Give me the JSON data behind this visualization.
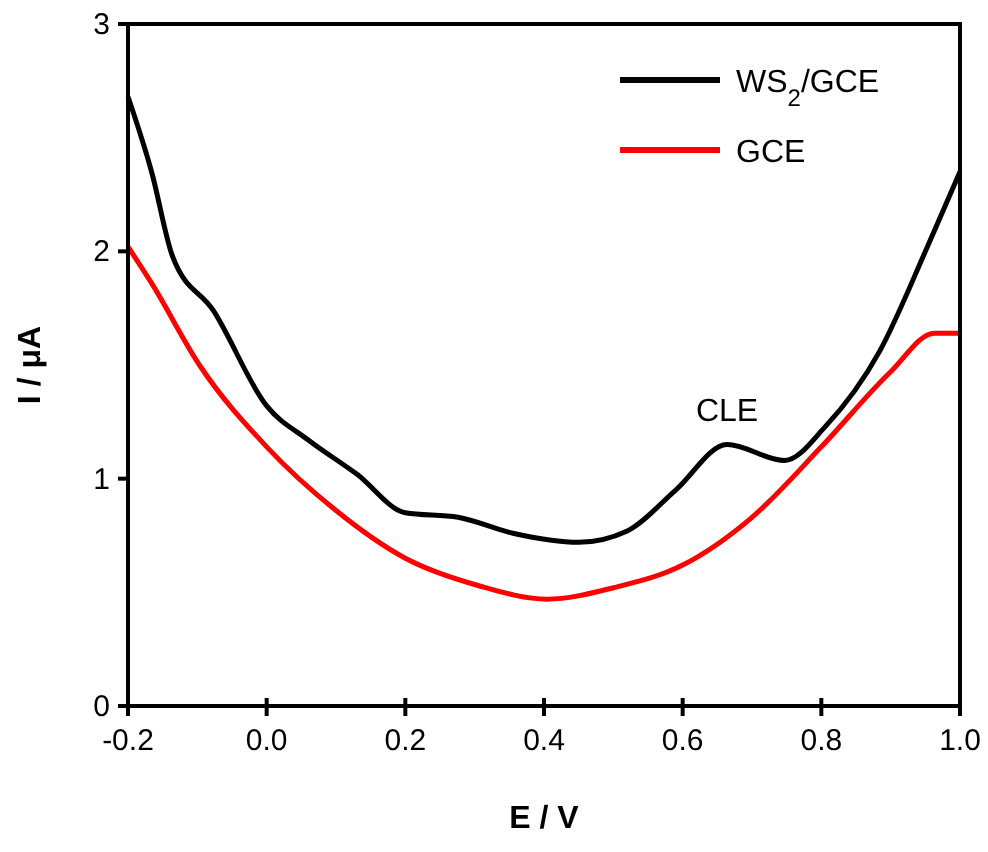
{
  "chart_data": {
    "type": "line",
    "xlabel": "E / V",
    "ylabel": "I / μA",
    "xlim": [
      -0.2,
      1.0
    ],
    "xticks": [
      {
        "value": -0.2,
        "label": "-0.2"
      },
      {
        "value": 0,
        "label": "0.0"
      },
      0.2,
      0.4,
      0.6,
      0.8,
      {
        "value": 1,
        "label": "1.0"
      }
    ],
    "ylim": [
      0,
      3
    ],
    "yticks": [
      0,
      1,
      2,
      3
    ],
    "grid": false,
    "legend": "top right",
    "line_style": "solid",
    "annotations": [
      {
        "text": "CLE",
        "x": 0.664,
        "y": 1.15
      }
    ],
    "series": [
      {
        "name": "WS$_{2}$/GCE",
        "color": "#000000",
        "x": [
          -0.2,
          -0.166,
          -0.136,
          -0.077,
          0.0,
          0.06,
          0.13,
          0.2,
          0.276,
          0.355,
          0.45,
          0.52,
          0.59,
          0.664,
          0.747,
          0.806,
          0.884,
          0.953,
          1.0
        ],
        "values": [
          2.68,
          2.35,
          1.98,
          1.74,
          1.32,
          1.17,
          1.02,
          0.85,
          0.83,
          0.76,
          0.72,
          0.77,
          0.95,
          1.15,
          1.08,
          1.23,
          1.56,
          2.02,
          2.35
        ]
      },
      {
        "name": "GCE",
        "color": "#ff0000",
        "x": [
          -0.2,
          -0.166,
          -0.097,
          0.0,
          0.1,
          0.2,
          0.305,
          0.404,
          0.5,
          0.6,
          0.7,
          0.8,
          0.9,
          0.963,
          1.0
        ],
        "values": [
          2.02,
          1.86,
          1.5,
          1.14,
          0.86,
          0.65,
          0.53,
          0.47,
          0.52,
          0.62,
          0.83,
          1.14,
          1.47,
          1.64,
          1.64
        ]
      }
    ]
  }
}
